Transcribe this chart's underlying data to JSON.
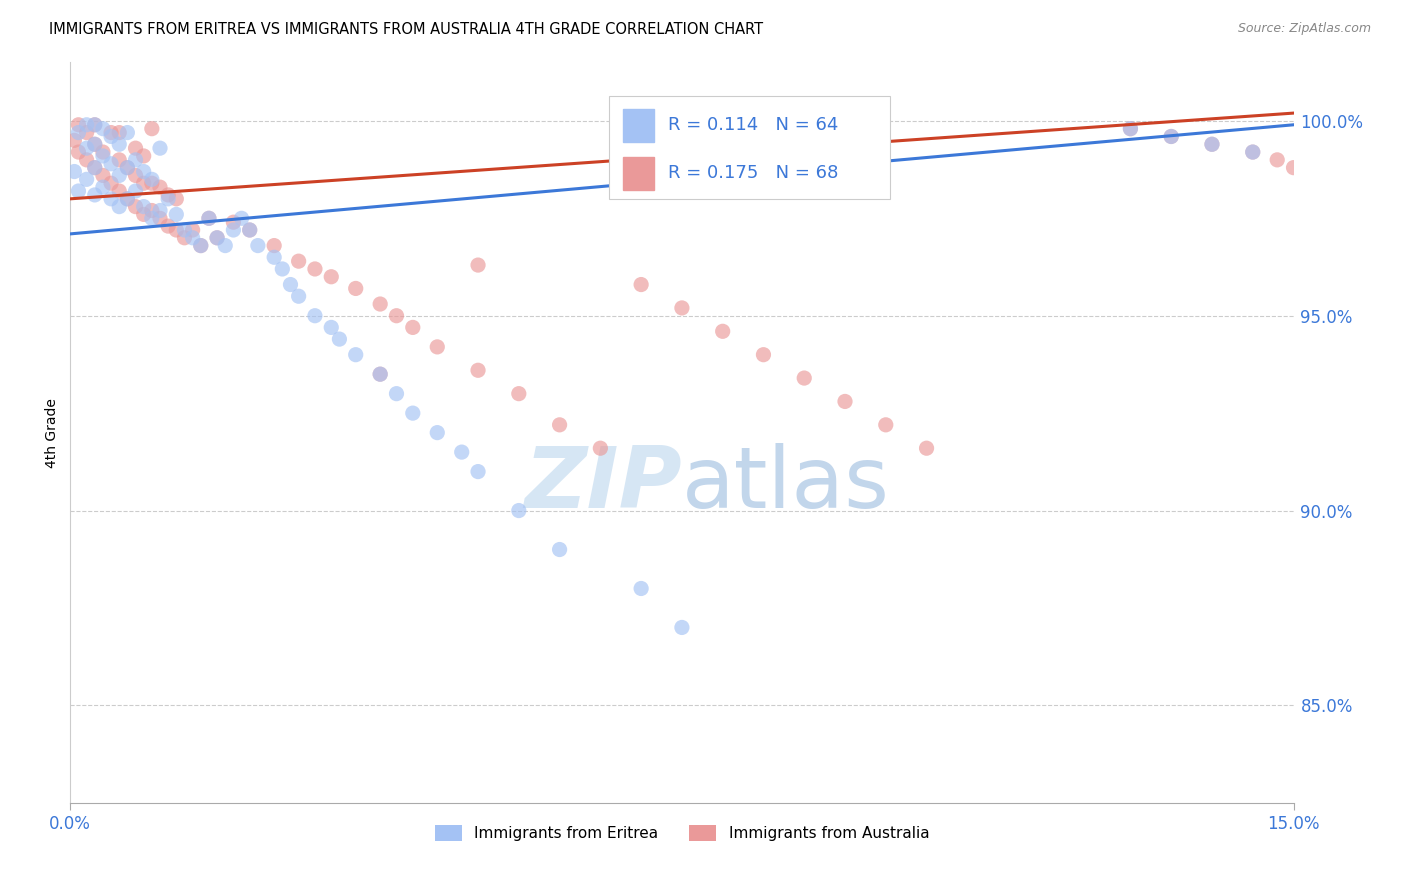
{
  "title": "IMMIGRANTS FROM ERITREA VS IMMIGRANTS FROM AUSTRALIA 4TH GRADE CORRELATION CHART",
  "source": "Source: ZipAtlas.com",
  "ylabel": "4th Grade",
  "yaxis_labels": [
    "100.0%",
    "95.0%",
    "90.0%",
    "85.0%"
  ],
  "yaxis_values": [
    1.0,
    0.95,
    0.9,
    0.85
  ],
  "xmin": 0.0,
  "xmax": 0.15,
  "ymin": 0.825,
  "ymax": 1.015,
  "legend_eritrea": "Immigrants from Eritrea",
  "legend_australia": "Immigrants from Australia",
  "R_eritrea": "0.114",
  "N_eritrea": "64",
  "R_australia": "0.175",
  "N_australia": "68",
  "color_eritrea": "#a4c2f4",
  "color_australia": "#ea9999",
  "color_line_eritrea": "#3c78d8",
  "color_line_australia": "#cc4125",
  "watermark_color": "#cfe2f3",
  "eritrea_x": [
    0.0005,
    0.001,
    0.001,
    0.002,
    0.002,
    0.002,
    0.003,
    0.003,
    0.003,
    0.003,
    0.004,
    0.004,
    0.004,
    0.005,
    0.005,
    0.005,
    0.006,
    0.006,
    0.006,
    0.007,
    0.007,
    0.007,
    0.008,
    0.008,
    0.009,
    0.009,
    0.01,
    0.01,
    0.011,
    0.011,
    0.012,
    0.013,
    0.014,
    0.015,
    0.016,
    0.017,
    0.018,
    0.019,
    0.02,
    0.021,
    0.022,
    0.023,
    0.025,
    0.026,
    0.027,
    0.028,
    0.03,
    0.032,
    0.033,
    0.035,
    0.038,
    0.04,
    0.042,
    0.045,
    0.048,
    0.05,
    0.055,
    0.06,
    0.07,
    0.075,
    0.13,
    0.135,
    0.14,
    0.145
  ],
  "eritrea_y": [
    0.987,
    0.982,
    0.997,
    0.985,
    0.993,
    0.999,
    0.981,
    0.988,
    0.994,
    0.999,
    0.983,
    0.991,
    0.998,
    0.98,
    0.989,
    0.996,
    0.978,
    0.986,
    0.994,
    0.98,
    0.988,
    0.997,
    0.982,
    0.99,
    0.978,
    0.987,
    0.975,
    0.985,
    0.977,
    0.993,
    0.98,
    0.976,
    0.972,
    0.97,
    0.968,
    0.975,
    0.97,
    0.968,
    0.972,
    0.975,
    0.972,
    0.968,
    0.965,
    0.962,
    0.958,
    0.955,
    0.95,
    0.947,
    0.944,
    0.94,
    0.935,
    0.93,
    0.925,
    0.92,
    0.915,
    0.91,
    0.9,
    0.89,
    0.88,
    0.87,
    0.998,
    0.996,
    0.994,
    0.992
  ],
  "australia_x": [
    0.0005,
    0.001,
    0.001,
    0.002,
    0.002,
    0.003,
    0.003,
    0.003,
    0.004,
    0.004,
    0.005,
    0.005,
    0.006,
    0.006,
    0.006,
    0.007,
    0.007,
    0.008,
    0.008,
    0.008,
    0.009,
    0.009,
    0.009,
    0.01,
    0.01,
    0.01,
    0.011,
    0.011,
    0.012,
    0.012,
    0.013,
    0.013,
    0.014,
    0.015,
    0.016,
    0.017,
    0.018,
    0.02,
    0.022,
    0.025,
    0.028,
    0.03,
    0.032,
    0.035,
    0.038,
    0.04,
    0.042,
    0.045,
    0.05,
    0.055,
    0.06,
    0.065,
    0.07,
    0.075,
    0.08,
    0.085,
    0.09,
    0.095,
    0.1,
    0.105,
    0.13,
    0.135,
    0.14,
    0.145,
    0.148,
    0.15,
    0.038,
    0.05
  ],
  "australia_y": [
    0.995,
    0.992,
    0.999,
    0.99,
    0.997,
    0.988,
    0.994,
    0.999,
    0.986,
    0.992,
    0.984,
    0.997,
    0.982,
    0.99,
    0.997,
    0.98,
    0.988,
    0.978,
    0.986,
    0.993,
    0.976,
    0.984,
    0.991,
    0.977,
    0.984,
    0.998,
    0.975,
    0.983,
    0.973,
    0.981,
    0.972,
    0.98,
    0.97,
    0.972,
    0.968,
    0.975,
    0.97,
    0.974,
    0.972,
    0.968,
    0.964,
    0.962,
    0.96,
    0.957,
    0.953,
    0.95,
    0.947,
    0.942,
    0.936,
    0.93,
    0.922,
    0.916,
    0.958,
    0.952,
    0.946,
    0.94,
    0.934,
    0.928,
    0.922,
    0.916,
    0.998,
    0.996,
    0.994,
    0.992,
    0.99,
    0.988,
    0.935,
    0.963
  ],
  "trend_eritrea_x0": 0.0,
  "trend_eritrea_y0": 0.971,
  "trend_eritrea_x1": 0.15,
  "trend_eritrea_y1": 0.999,
  "trend_australia_x0": 0.0,
  "trend_australia_y0": 0.98,
  "trend_australia_x1": 0.15,
  "trend_australia_y1": 1.002
}
